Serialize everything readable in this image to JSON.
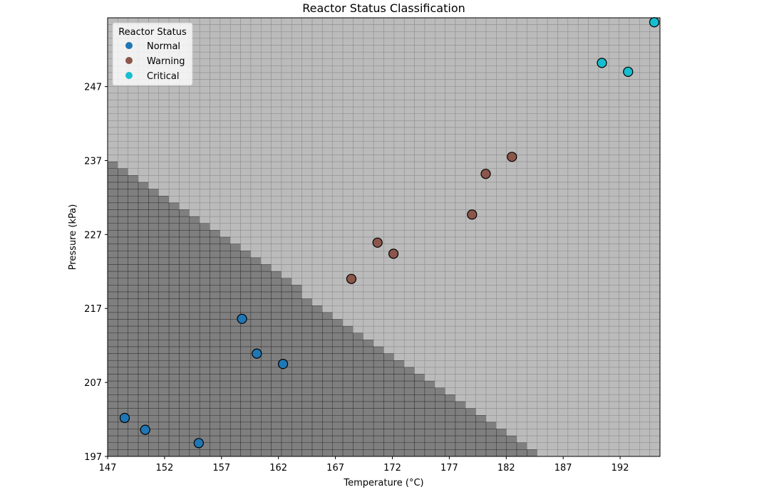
{
  "chart_data": {
    "type": "scatter",
    "title": "Reactor Status Classification",
    "xlabel": "Temperature (°C)",
    "ylabel": "Pressure (kPa)",
    "xlim": [
      147,
      195.5
    ],
    "ylim": [
      197,
      256.3
    ],
    "xticks": [
      147,
      152,
      157,
      162,
      167,
      172,
      177,
      182,
      187,
      192
    ],
    "yticks": [
      197,
      207,
      217,
      227,
      237,
      247
    ],
    "legend": {
      "title": "Reactor Status",
      "placement": "top-left"
    },
    "series": [
      {
        "name": "Normal",
        "color": "#1f77b4",
        "points": [
          [
            148.5,
            202.2
          ],
          [
            150.3,
            200.6
          ],
          [
            155.0,
            198.8
          ],
          [
            158.8,
            215.6
          ],
          [
            160.1,
            210.9
          ],
          [
            162.4,
            209.5
          ]
        ]
      },
      {
        "name": "Warning",
        "color": "#8c564b",
        "points": [
          [
            168.4,
            221.0
          ],
          [
            170.7,
            225.9
          ],
          [
            172.1,
            224.4
          ],
          [
            179.0,
            229.7
          ],
          [
            180.2,
            235.2
          ],
          [
            182.5,
            237.5
          ]
        ]
      },
      {
        "name": "Critical",
        "color": "#17becf",
        "points": [
          [
            190.4,
            250.2
          ],
          [
            192.7,
            249.0
          ],
          [
            195.0,
            255.7
          ]
        ]
      }
    ],
    "background_regions": [
      {
        "class": "Normal",
        "color": "#7f7f7f"
      },
      {
        "class": "Warning",
        "color": "#bbbbbb"
      },
      {
        "class": "Critical",
        "color": "#ffffff"
      }
    ],
    "grid": false
  }
}
